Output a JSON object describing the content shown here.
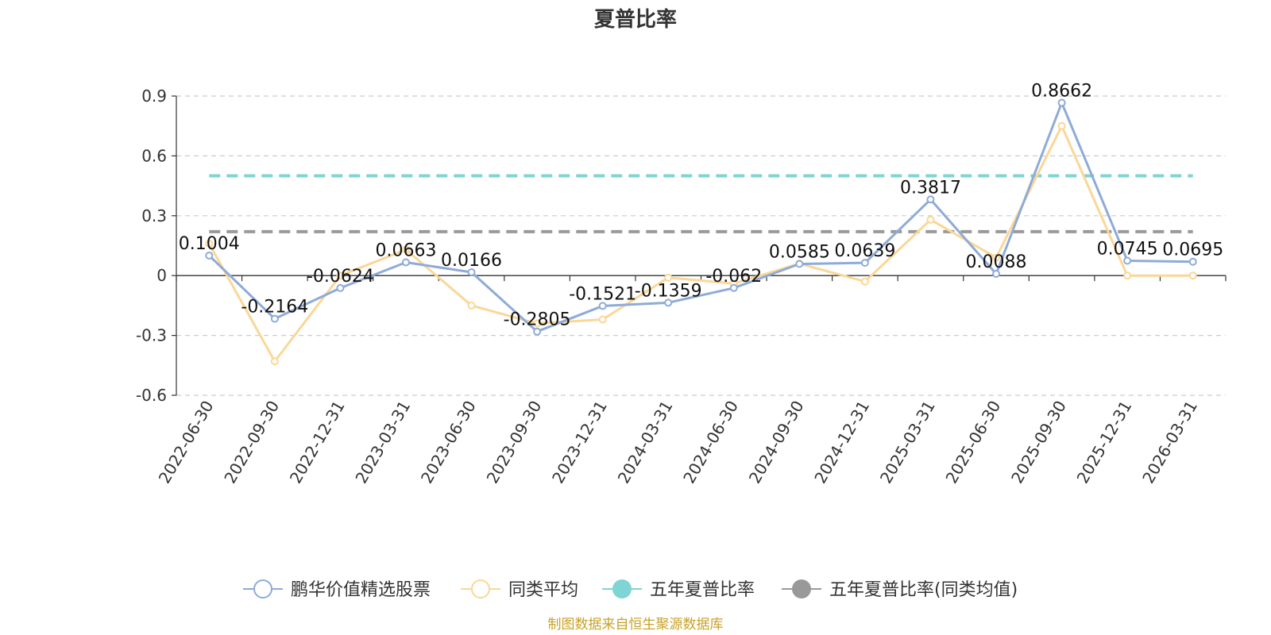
{
  "chart_data": {
    "type": "line",
    "title": "夏普比率",
    "categories": [
      "2022-06-30",
      "2022-09-30",
      "2022-12-31",
      "2023-03-31",
      "2023-06-30",
      "2023-09-30",
      "2023-12-31",
      "2024-03-31",
      "2024-06-30",
      "2024-09-30",
      "2024-12-31",
      "2025-03-31",
      "2025-06-30",
      "2025-09-30",
      "2025-12-31",
      "2026-03-31"
    ],
    "ylim": [
      -0.6,
      0.9
    ],
    "yticks": [
      "-0.6",
      "-0.3",
      "0",
      "0.3",
      "0.6",
      "0.9"
    ],
    "ytick_values": [
      -0.6,
      -0.3,
      0,
      0.3,
      0.6,
      0.9
    ],
    "grid": true,
    "legend_position": "bottom",
    "series": [
      {
        "name": "鹏华价值精选股票",
        "color": "#8eabd8",
        "values": [
          0.1004,
          -0.2164,
          -0.0624,
          0.0663,
          0.0166,
          -0.2805,
          -0.1521,
          -0.1359,
          -0.062,
          0.0585,
          0.0639,
          0.3817,
          0.0088,
          0.8662,
          0.0745,
          0.0695
        ],
        "labels": [
          "0.1004",
          "-0.2164",
          "-0.0624",
          "0.0663",
          "0.0166",
          "-0.2805",
          "-0.1521",
          "-0.1359",
          "-0.062",
          "0.0585",
          "0.0639",
          "0.3817",
          "0.0088",
          "0.8662",
          "0.0745",
          "0.0695"
        ]
      },
      {
        "name": "同类平均",
        "color": "#fad797",
        "values": [
          0.16,
          -0.43,
          0.0,
          0.13,
          -0.15,
          -0.24,
          -0.22,
          -0.01,
          -0.04,
          0.06,
          -0.03,
          0.28,
          0.09,
          0.75,
          0.0,
          0.0
        ]
      }
    ],
    "reference_lines": [
      {
        "name": "五年夏普比率",
        "color": "#7fd4d4",
        "value": 0.5
      },
      {
        "name": "五年夏普比率(同类均值)",
        "color": "#999999",
        "value": 0.22
      }
    ],
    "source_note": "制图数据来自恒生聚源数据库"
  }
}
